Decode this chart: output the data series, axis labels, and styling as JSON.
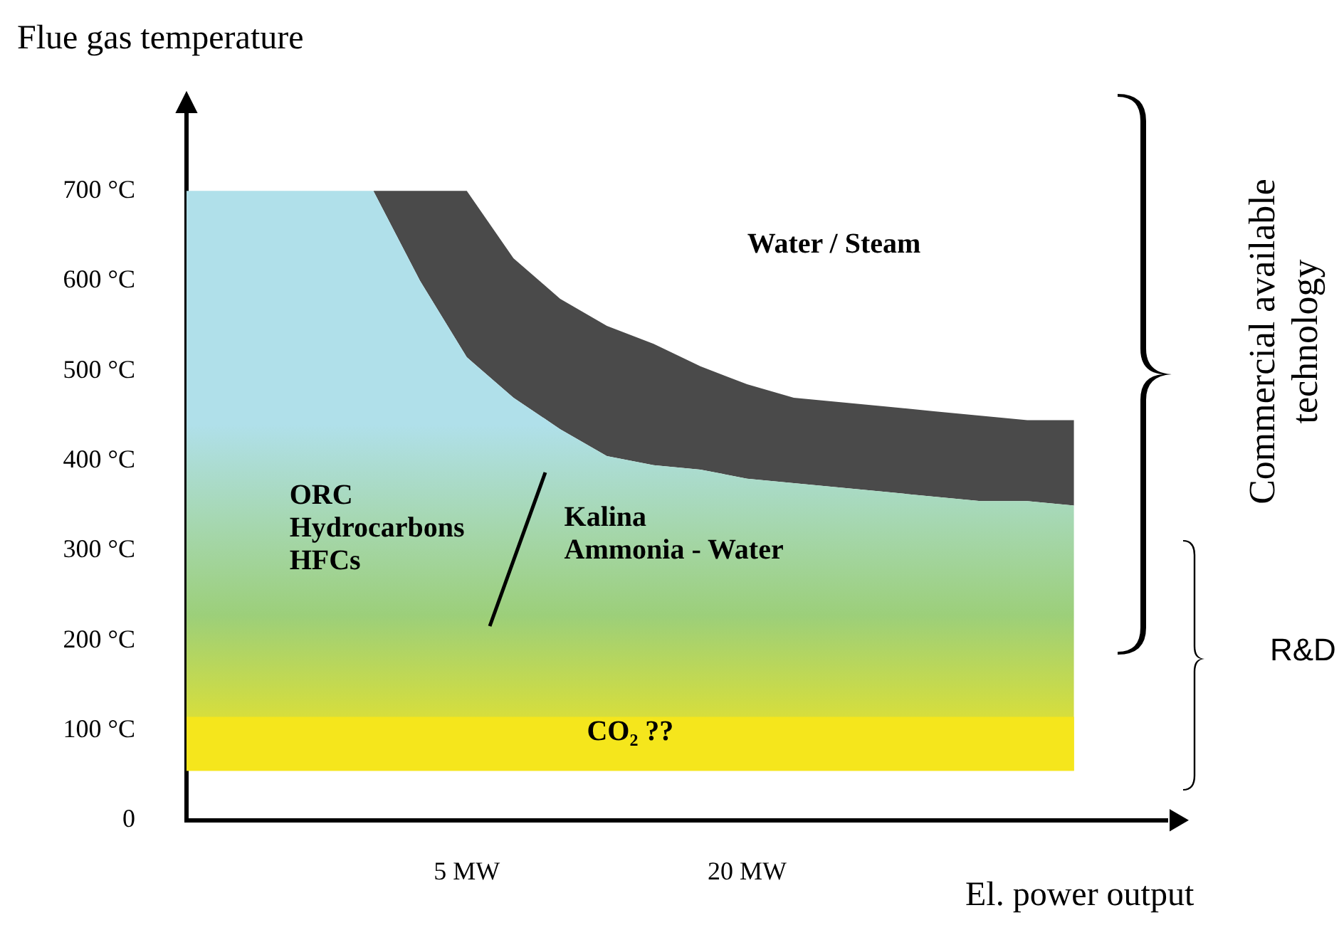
{
  "chart_data": {
    "type": "area",
    "xlabel": "El. power output",
    "ylabel": "Flue gas temperature",
    "categories": [
      null,
      null,
      null,
      null,
      null,
      null,
      "5 MW",
      null,
      null,
      null,
      null,
      null,
      "20 MW",
      null,
      null,
      null,
      null,
      null,
      null,
      null,
      null,
      null
    ],
    "series": [
      {
        "color": "#b0e0ea",
        "values": [
          700,
          700,
          700,
          700,
          700,
          600,
          515,
          470,
          435,
          405,
          395,
          390,
          380,
          375,
          370,
          365,
          360,
          355,
          355,
          350,
          null,
          null
        ]
      },
      {
        "color": "#4a4a4a",
        "values": [
          null,
          null,
          null,
          null,
          700,
          700,
          700,
          625,
          580,
          550,
          530,
          505,
          485,
          470,
          465,
          460,
          455,
          450,
          445,
          445,
          null,
          null
        ]
      }
    ],
    "ylim": [
      0,
      800
    ],
    "yticks": [
      0,
      {
        "value": 100,
        "label": "100 °C"
      },
      {
        "value": 200,
        "label": "200 °C"
      },
      {
        "value": 300,
        "label": "300 °C"
      },
      {
        "value": 400,
        "label": "400 °C"
      },
      {
        "value": 500,
        "label": "500 °C"
      },
      {
        "value": 600,
        "label": "600 °C"
      },
      {
        "value": 700,
        "label": "700 °C"
      }
    ],
    "bands": [
      {
        "axis": "y",
        "from": 55,
        "to": 115,
        "label": "CO₂ ??",
        "color": "#f5e61c"
      }
    ],
    "annotations": [
      "Water / Steam",
      "ORC\nHydrocarbons\nHFCs",
      "Kalina\nAmmonia - Water",
      "Commercial available\ntechnology",
      "R&D"
    ],
    "grid": false,
    "legend": false,
    "marker": "none"
  }
}
